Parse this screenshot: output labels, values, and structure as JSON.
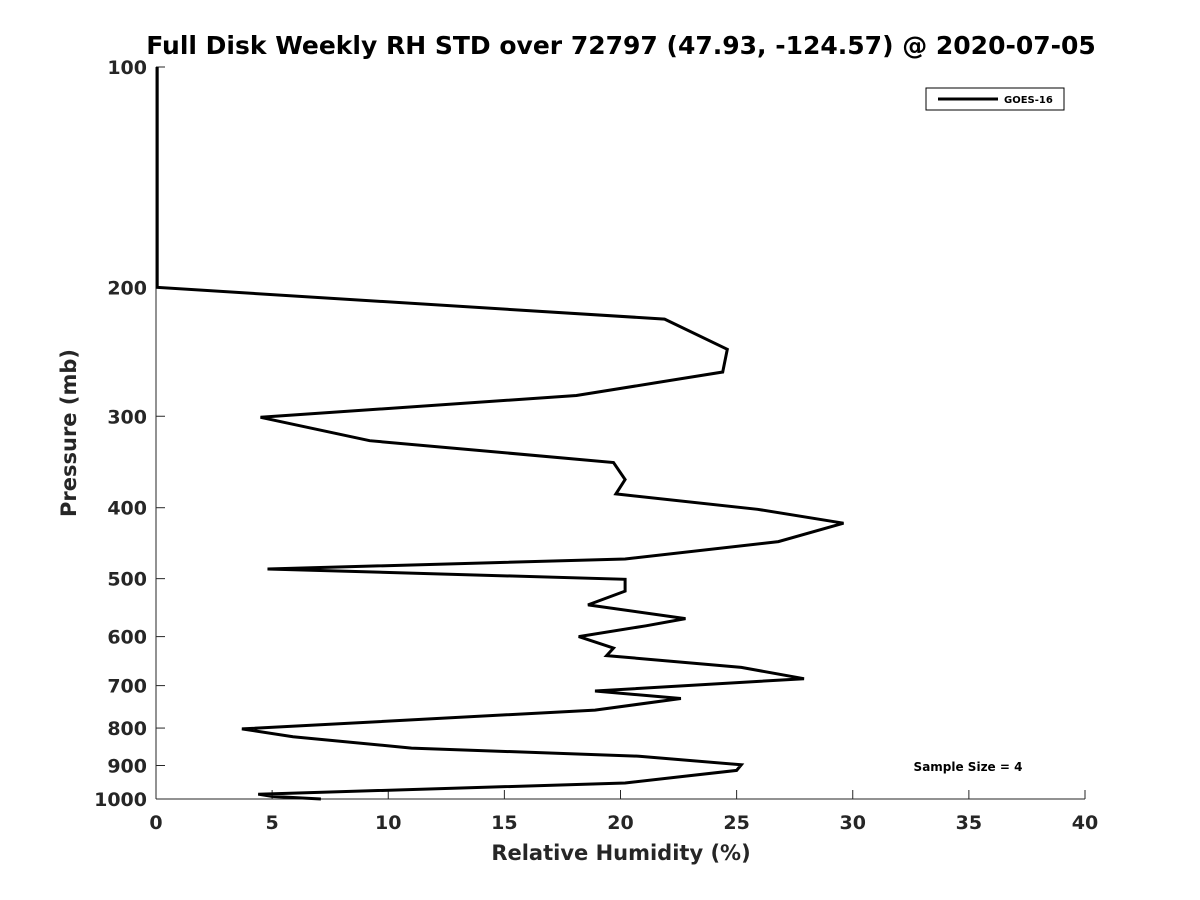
{
  "chart_data": {
    "type": "line",
    "title": "Full Disk Weekly RH STD over 72797 (47.93, -124.57) @ 2020-07-05",
    "xlabel": "Relative Humidity (%)",
    "ylabel": "Pressure (mb)",
    "xlim": [
      0,
      40
    ],
    "ylim": [
      100,
      1000
    ],
    "yscale": "log",
    "yreversed": true,
    "xticks": [
      0,
      5,
      10,
      15,
      20,
      25,
      30,
      35,
      40
    ],
    "yticks": [
      100,
      200,
      300,
      400,
      500,
      600,
      700,
      800,
      900,
      1000
    ],
    "legend": {
      "position": "top-right",
      "entries": [
        "GOES-16"
      ]
    },
    "annotation": "Sample Size = 4",
    "series": [
      {
        "name": "GOES-16",
        "color": "#000000",
        "points": [
          [
            0.05,
            100
          ],
          [
            0.05,
            150
          ],
          [
            0.05,
            200
          ],
          [
            21.9,
            221
          ],
          [
            24.6,
            243
          ],
          [
            24.4,
            261
          ],
          [
            18.1,
            281
          ],
          [
            4.5,
            301
          ],
          [
            9.2,
            324
          ],
          [
            19.7,
            347
          ],
          [
            20.2,
            366
          ],
          [
            19.8,
            383
          ],
          [
            25.9,
            402
          ],
          [
            29.6,
            420
          ],
          [
            26.8,
            445
          ],
          [
            20.2,
            470
          ],
          [
            4.8,
            485
          ],
          [
            20.2,
            501
          ],
          [
            20.2,
            520
          ],
          [
            18.6,
            543
          ],
          [
            22.8,
            567
          ],
          [
            21.1,
            580
          ],
          [
            18.2,
            600
          ],
          [
            19.7,
            622
          ],
          [
            19.4,
            637
          ],
          [
            25.2,
            661
          ],
          [
            27.9,
            685
          ],
          [
            18.9,
            712
          ],
          [
            22.6,
            729
          ],
          [
            18.9,
            756
          ],
          [
            3.7,
            802
          ],
          [
            5.9,
            822
          ],
          [
            11.0,
            852
          ],
          [
            20.8,
            874
          ],
          [
            25.2,
            898
          ],
          [
            25.0,
            914
          ],
          [
            22.9,
            930
          ],
          [
            20.2,
            951
          ],
          [
            4.4,
            985
          ],
          [
            5.0,
            992
          ],
          [
            7.1,
            1000
          ]
        ]
      }
    ]
  }
}
